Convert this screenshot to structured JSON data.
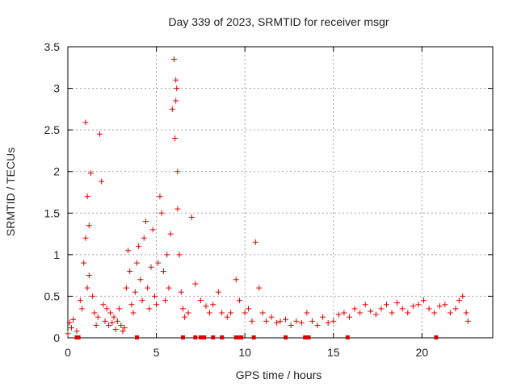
{
  "chart_data": {
    "type": "scatter",
    "title": "Day 339 of 2023, SRMTID for receiver msgr",
    "xlabel": "GPS time / hours",
    "ylabel": "SRMTID / TECUs",
    "xlim": [
      0,
      24
    ],
    "ylim": [
      0,
      3.5
    ],
    "x_ticks": [
      0,
      5,
      10,
      15,
      20
    ],
    "x_tick_labels": [
      "0",
      "5",
      "10",
      "15",
      "20"
    ],
    "y_ticks": [
      0,
      0.5,
      1,
      1.5,
      2,
      2.5,
      3,
      3.5
    ],
    "y_tick_labels": [
      "0",
      "0.5",
      "1",
      "1.5",
      "2",
      "2.5",
      "3",
      "3.5"
    ],
    "grid": true,
    "marker": "+",
    "colors": {
      "series": "#e00000",
      "grid": "#a0a0a0",
      "axis": "#000000"
    },
    "series": [
      {
        "name": "SRMTID",
        "x": [
          0.0,
          0.1,
          0.2,
          0.3,
          0.5,
          0.7,
          0.8,
          0.9,
          1.0,
          1.0,
          1.1,
          1.1,
          1.2,
          1.2,
          1.3,
          1.4,
          1.5,
          1.6,
          1.7,
          1.8,
          1.9,
          2.0,
          2.1,
          2.2,
          2.3,
          2.4,
          2.5,
          2.6,
          2.7,
          2.8,
          2.9,
          3.0,
          3.1,
          3.2,
          3.3,
          3.4,
          3.5,
          3.6,
          3.7,
          3.8,
          3.9,
          4.0,
          4.1,
          4.2,
          4.3,
          4.4,
          4.5,
          4.6,
          4.7,
          4.8,
          4.9,
          5.0,
          5.1,
          5.2,
          5.3,
          5.4,
          5.5,
          5.6,
          5.7,
          5.8,
          5.9,
          6.0,
          6.05,
          6.1,
          6.1,
          6.15,
          6.2,
          6.2,
          6.3,
          6.4,
          6.5,
          6.6,
          6.8,
          7.0,
          7.2,
          7.5,
          7.8,
          8.0,
          8.2,
          8.5,
          8.7,
          9.0,
          9.2,
          9.5,
          9.7,
          10.0,
          10.2,
          10.4,
          10.6,
          10.8,
          11.0,
          11.2,
          11.5,
          11.8,
          12.0,
          12.3,
          12.6,
          12.9,
          13.2,
          13.5,
          13.8,
          14.1,
          14.4,
          14.7,
          15.0,
          15.3,
          15.6,
          15.9,
          16.2,
          16.5,
          16.8,
          17.1,
          17.4,
          17.7,
          18.0,
          18.3,
          18.6,
          18.9,
          19.2,
          19.5,
          19.8,
          20.1,
          20.4,
          20.7,
          21.0,
          21.3,
          21.6,
          21.9,
          22.1,
          22.3,
          22.5,
          22.6
        ],
        "y": [
          0.05,
          0.18,
          0.12,
          0.22,
          0.08,
          0.45,
          0.35,
          0.9,
          1.2,
          2.59,
          0.6,
          1.7,
          0.75,
          1.35,
          1.98,
          0.5,
          0.3,
          0.15,
          0.25,
          2.45,
          1.88,
          0.4,
          0.2,
          0.35,
          0.15,
          0.3,
          0.18,
          0.25,
          0.1,
          0.2,
          0.35,
          0.15,
          0.08,
          0.12,
          0.6,
          1.05,
          0.8,
          0.4,
          0.3,
          0.55,
          0.9,
          1.1,
          0.7,
          0.45,
          1.2,
          1.4,
          0.6,
          0.35,
          0.85,
          1.3,
          0.5,
          0.4,
          0.9,
          1.7,
          1.5,
          0.8,
          0.45,
          1.0,
          0.6,
          1.25,
          2.75,
          3.35,
          2.4,
          3.1,
          2.85,
          3.0,
          2.0,
          1.55,
          1.0,
          0.55,
          0.35,
          0.25,
          0.3,
          1.45,
          0.65,
          0.45,
          0.38,
          0.3,
          0.4,
          0.55,
          0.3,
          0.25,
          0.3,
          0.7,
          0.45,
          0.3,
          0.35,
          0.2,
          1.15,
          0.6,
          0.3,
          0.2,
          0.25,
          0.18,
          0.2,
          0.22,
          0.15,
          0.2,
          0.18,
          0.3,
          0.2,
          0.15,
          0.25,
          0.18,
          0.2,
          0.28,
          0.3,
          0.25,
          0.35,
          0.3,
          0.4,
          0.32,
          0.28,
          0.35,
          0.4,
          0.3,
          0.42,
          0.35,
          0.3,
          0.38,
          0.4,
          0.45,
          0.35,
          0.3,
          0.38,
          0.4,
          0.3,
          0.35,
          0.45,
          0.5,
          0.3,
          0.2
        ]
      }
    ],
    "gap_markers_x": [
      0.5,
      0.6,
      3.9,
      6.5,
      7.2,
      7.5,
      7.7,
      8.2,
      8.7,
      9.5,
      9.6,
      9.8,
      10.5,
      12.3,
      13.4,
      13.6,
      15.8,
      20.8
    ]
  }
}
